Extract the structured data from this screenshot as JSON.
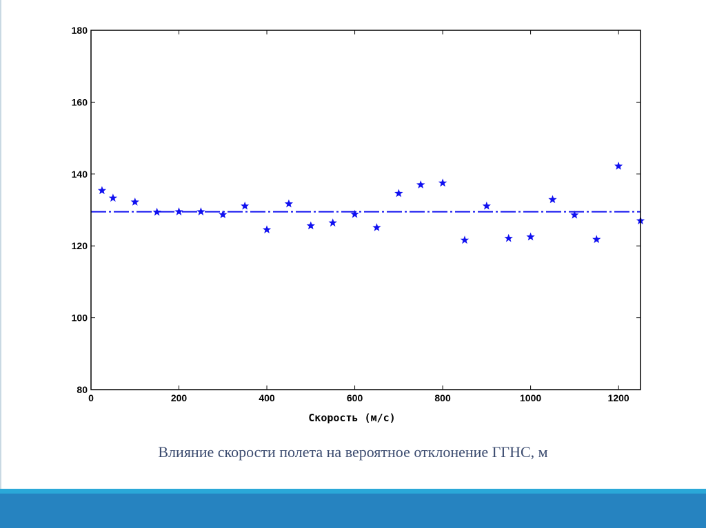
{
  "chart_data": {
    "type": "scatter",
    "title": "",
    "xlabel": "Скорость (м/с)",
    "ylabel": "",
    "xlim": [
      0,
      1250
    ],
    "ylim": [
      80,
      180
    ],
    "xticks": [
      0,
      200,
      400,
      600,
      800,
      1000,
      1200
    ],
    "yticks": [
      80,
      100,
      120,
      140,
      160,
      180
    ],
    "grid": false,
    "marker": "star",
    "series": [
      {
        "x": [
          25,
          50,
          100,
          150,
          200,
          250,
          300,
          350,
          400,
          450,
          500,
          550,
          600,
          650,
          700,
          750,
          800,
          850,
          900,
          950,
          1000,
          1050,
          1100,
          1150,
          1200,
          1250
        ],
        "y": [
          135.4,
          133.3,
          132.2,
          129.4,
          129.5,
          129.5,
          128.7,
          131.1,
          124.5,
          131.7,
          125.6,
          126.4,
          128.8,
          125.1,
          134.6,
          137.0,
          137.5,
          121.6,
          131.1,
          122.1,
          122.5,
          132.9,
          128.6,
          121.8,
          142.2,
          127.0
        ],
        "color": "#1010f0"
      }
    ],
    "reference_line": {
      "y": 129.5,
      "style": "dash-dot",
      "color": "#1010f0"
    }
  },
  "caption": "Влияние скорости полета на вероятное отклонение ГГНС, м",
  "colors": {
    "caption": "#3a4a6e",
    "band_light": "#2aa8d8",
    "band_dark": "#2683c0",
    "axis": "#000000"
  }
}
